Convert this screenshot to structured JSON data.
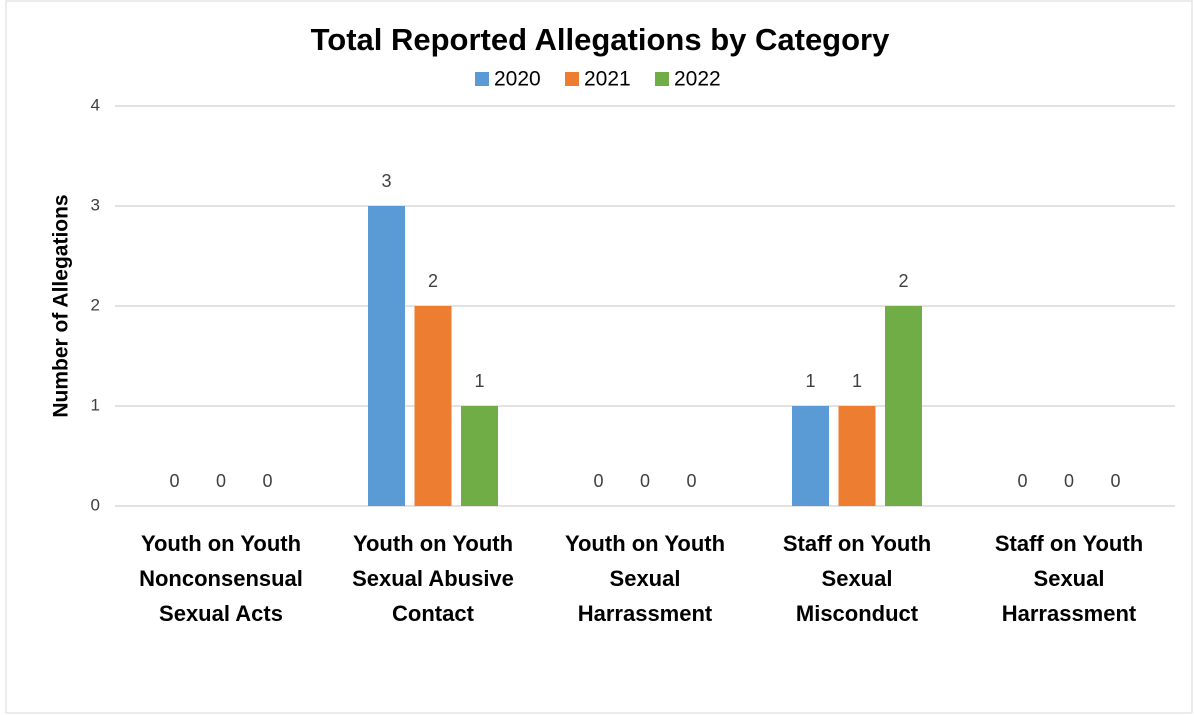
{
  "chart_data": {
    "type": "bar",
    "title": "Total Reported Allegations by Category",
    "y_axis_label": "Number of Allegations",
    "categories": [
      [
        "Youth on Youth",
        "Nonconsensual",
        "Sexual Acts"
      ],
      [
        "Youth on Youth",
        "Sexual Abusive",
        "Contact"
      ],
      [
        "Youth on Youth",
        "Sexual",
        "Harrassment"
      ],
      [
        "Staff on Youth",
        "Sexual",
        "Misconduct"
      ],
      [
        "Staff on Youth",
        "Sexual",
        "Harrassment"
      ]
    ],
    "series": [
      {
        "name": "2020",
        "color": "#5b9bd5",
        "values": [
          0,
          3,
          0,
          1,
          0
        ]
      },
      {
        "name": "2021",
        "color": "#ed7d31",
        "values": [
          0,
          2,
          0,
          1,
          0
        ]
      },
      {
        "name": "2022",
        "color": "#70ad47",
        "values": [
          0,
          1,
          0,
          2,
          0
        ]
      }
    ],
    "ylim": [
      0,
      4
    ],
    "yticks": [
      0,
      1,
      2,
      3,
      4
    ],
    "grid": true,
    "legend": "top"
  }
}
